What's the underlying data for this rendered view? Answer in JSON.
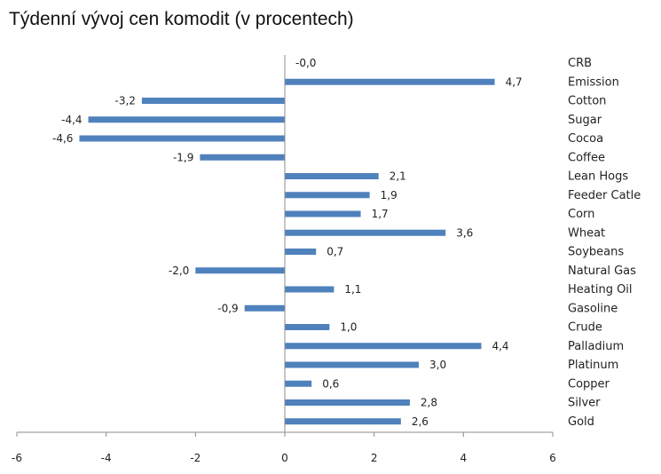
{
  "chart_data": {
    "type": "bar",
    "orientation": "horizontal",
    "title": "Týdenní vývoj cen komodit (v procentech)",
    "xlim": [
      -6,
      6
    ],
    "xticks": [
      "-6",
      "-4",
      "-2",
      "0",
      "2",
      "4",
      "6"
    ],
    "grid": false,
    "bar_color": "#4f81bd",
    "categories": [
      "CRB",
      "Emission",
      "Cotton",
      "Sugar",
      "Cocoa",
      "Coffee",
      "Lean Hogs",
      "Feeder Catle",
      "Corn",
      "Wheat",
      "Soybeans",
      "Natural Gas",
      "Heating Oil",
      "Gasoline",
      "Crude",
      "Palladium",
      "Platinum",
      "Copper",
      "Silver",
      "Gold"
    ],
    "values": [
      -0.0,
      4.7,
      -3.2,
      -4.4,
      -4.6,
      -1.9,
      2.1,
      1.9,
      1.7,
      3.6,
      0.7,
      -2.0,
      1.1,
      -0.9,
      1.0,
      4.4,
      3.0,
      0.6,
      2.8,
      2.6
    ],
    "value_labels": [
      "-0,0",
      "4,7",
      "-3,2",
      "-4,4",
      "-4,6",
      "-1,9",
      "2,1",
      "1,9",
      "1,7",
      "3,6",
      "0,7",
      "-2,0",
      "1,1",
      "-0,9",
      "1,0",
      "4,4",
      "3,0",
      "0,6",
      "2,8",
      "2,6"
    ]
  }
}
